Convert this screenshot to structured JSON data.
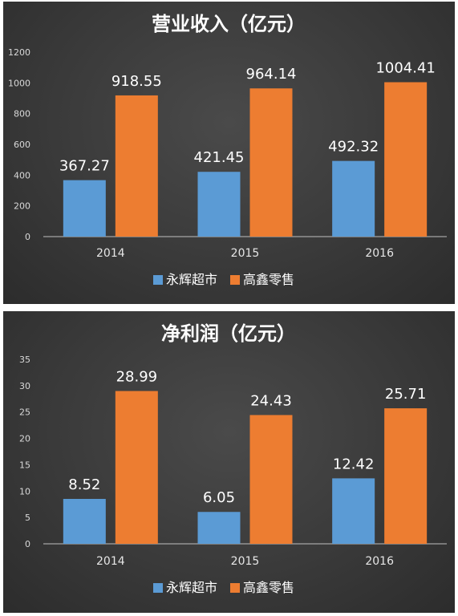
{
  "chart_data": [
    {
      "type": "bar",
      "title": "营业收入（亿元）",
      "categories": [
        "2014",
        "2015",
        "2016"
      ],
      "ylim": [
        0,
        1200
      ],
      "yticks": [
        0,
        200,
        400,
        600,
        800,
        1000,
        1200
      ],
      "grid": false,
      "legend": "bottom",
      "series": [
        {
          "name": "永辉超市",
          "color": "#5b9bd5",
          "values": [
            367.27,
            421.45,
            492.32
          ],
          "labels": [
            "367.27",
            "421.45",
            "492.32"
          ]
        },
        {
          "name": "高鑫零售",
          "color": "#ed7d31",
          "values": [
            918.55,
            964.14,
            1004.41
          ],
          "labels": [
            "918.55",
            "964.14",
            "1004.41"
          ]
        }
      ]
    },
    {
      "type": "bar",
      "title": "净利润（亿元）",
      "categories": [
        "2014",
        "2015",
        "2016"
      ],
      "ylim": [
        0,
        35
      ],
      "yticks": [
        0,
        5,
        10,
        15,
        20,
        25,
        30,
        35
      ],
      "grid": false,
      "legend": "bottom",
      "series": [
        {
          "name": "永辉超市",
          "color": "#5b9bd5",
          "values": [
            8.52,
            6.05,
            12.42
          ],
          "labels": [
            "8.52",
            "6.05",
            "12.42"
          ]
        },
        {
          "name": "高鑫零售",
          "color": "#ed7d31",
          "values": [
            28.99,
            24.43,
            25.71
          ],
          "labels": [
            "28.99",
            "24.43",
            "25.71"
          ]
        }
      ]
    }
  ]
}
